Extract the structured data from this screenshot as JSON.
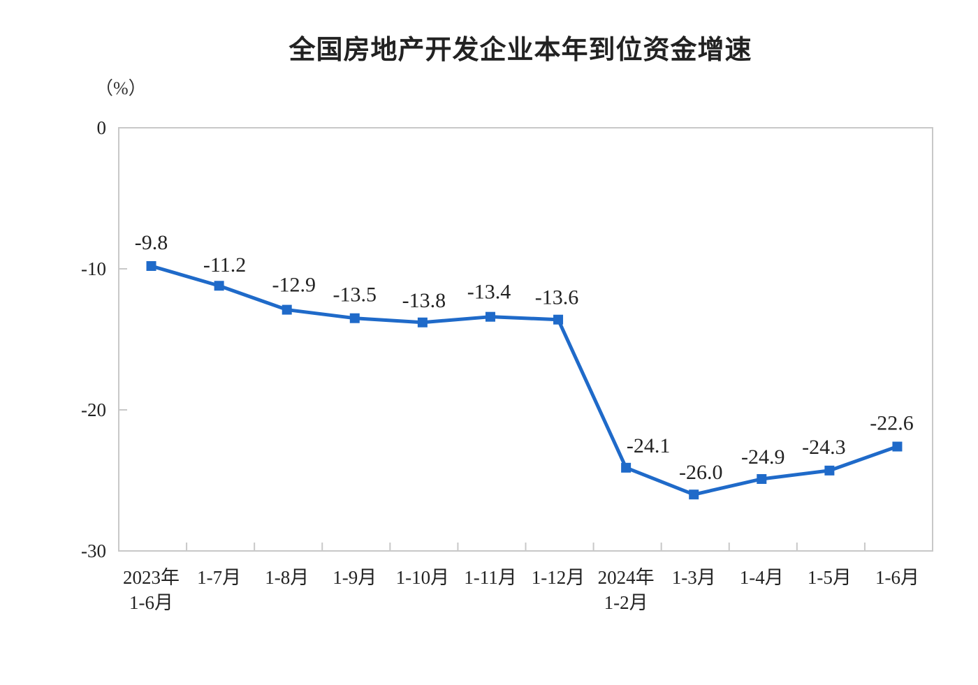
{
  "chart": {
    "title": "全国房地产开发企业本年到位资金增速",
    "unit_label": "（%）"
  },
  "colors": {
    "line": "#1f6ac9",
    "axis": "#c8c8c8",
    "text": "#222222"
  },
  "chart_data": {
    "type": "line",
    "title": "全国房地产开发企业本年到位资金增速",
    "ylabel": "（%）",
    "xlabel": "",
    "categories": [
      "2023年\n1-6月",
      "1-7月",
      "1-8月",
      "1-9月",
      "1-10月",
      "1-11月",
      "1-12月",
      "2024年\n1-2月",
      "1-3月",
      "1-4月",
      "1-5月",
      "1-6月"
    ],
    "series": [
      {
        "name": "全国房地产开发企业本年到位资金增速",
        "values": [
          -9.8,
          -11.2,
          -12.9,
          -13.5,
          -13.8,
          -13.4,
          -13.6,
          -24.1,
          -26.0,
          -24.9,
          -24.3,
          -22.6
        ]
      }
    ],
    "data_labels": [
      "-9.8",
      "-11.2",
      "-12.9",
      "-13.5",
      "-13.8",
      "-13.4",
      "-13.6",
      "-24.1",
      "-26.0",
      "-24.9",
      "-24.3",
      "-22.6"
    ],
    "ylim": [
      -30,
      0
    ],
    "yticks": [
      0,
      -10,
      -20,
      -30
    ],
    "ytick_labels": [
      "0",
      "-10",
      "-20",
      "-30"
    ],
    "grid": false,
    "legend": "none",
    "marker": "square"
  }
}
